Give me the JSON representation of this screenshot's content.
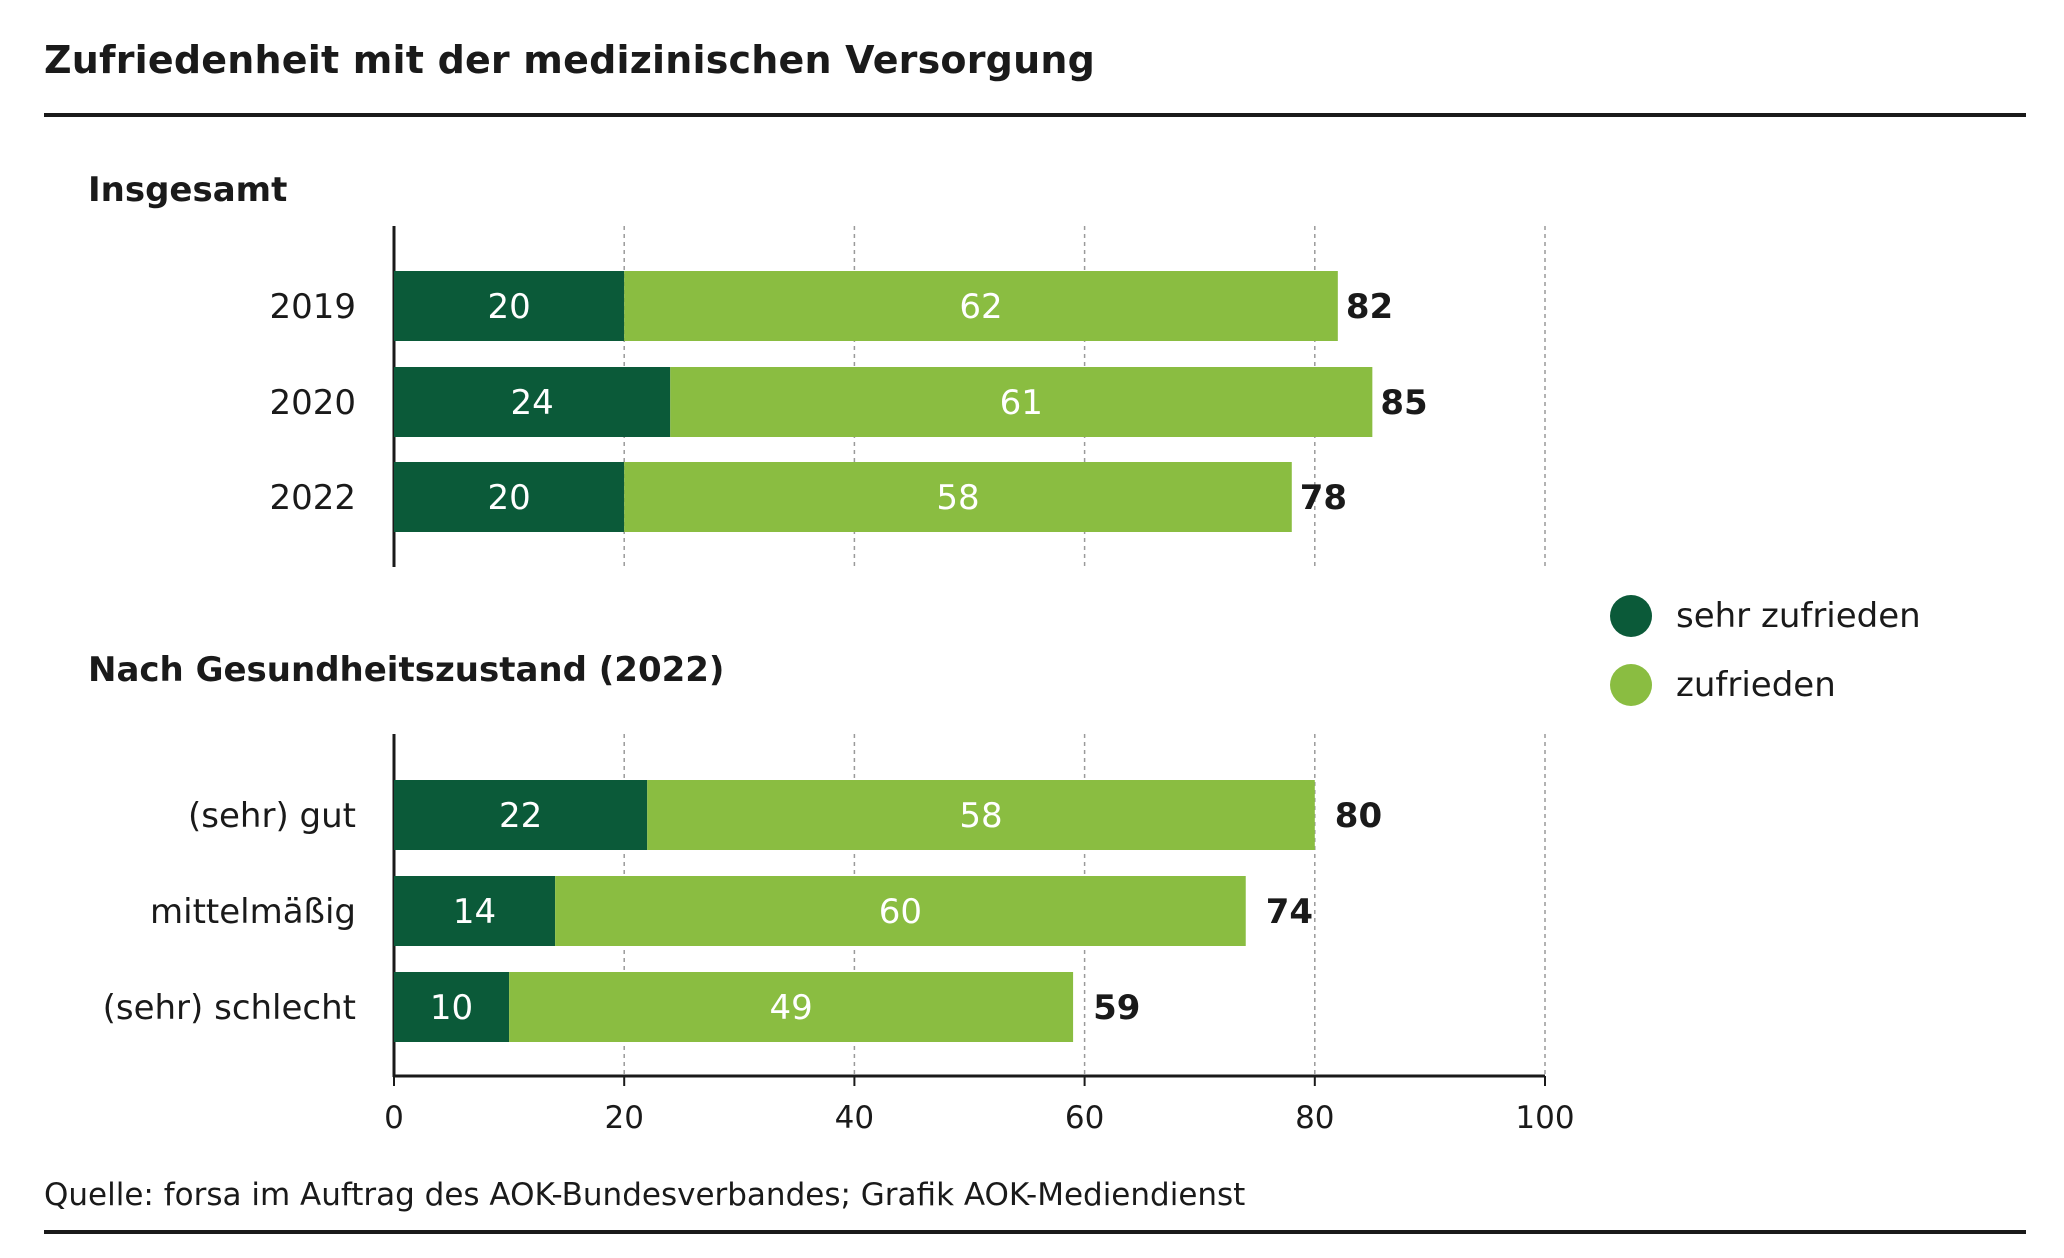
{
  "title": "Zufriedenheit mit der medizinischen Versorgung",
  "source": "Quelle: forsa im Auftrag des AOK-Bundesverbandes; Grafik AOK-Mediendienst",
  "colors": {
    "sehr_zufrieden": "#0b5a39",
    "zufrieden": "#8abd41"
  },
  "legend": [
    {
      "label": "sehr zufrieden",
      "color": "#0b5a39"
    },
    {
      "label": "zufrieden",
      "color": "#8abd41"
    }
  ],
  "chart_data": [
    {
      "type": "bar",
      "orientation": "horizontal",
      "stacked": true,
      "title": "Insgesamt",
      "categories": [
        "2019",
        "2020",
        "2022"
      ],
      "series": [
        {
          "name": "sehr zufrieden",
          "values": [
            20,
            24,
            20
          ]
        },
        {
          "name": "zufrieden",
          "values": [
            62,
            61,
            58
          ]
        }
      ],
      "totals": [
        82,
        85,
        78
      ],
      "xlim": [
        0,
        100
      ],
      "grid": true
    },
    {
      "type": "bar",
      "orientation": "horizontal",
      "stacked": true,
      "title": "Nach Gesundheitszustand (2022)",
      "categories": [
        "(sehr) gut",
        "mittelmäßig",
        "(sehr) schlecht"
      ],
      "series": [
        {
          "name": "sehr zufrieden",
          "values": [
            22,
            14,
            10
          ]
        },
        {
          "name": "zufrieden",
          "values": [
            58,
            60,
            49
          ]
        }
      ],
      "totals": [
        80,
        74,
        59
      ],
      "xlim": [
        0,
        100
      ],
      "xticks": [
        0,
        20,
        40,
        60,
        80,
        100
      ],
      "grid": true
    }
  ]
}
